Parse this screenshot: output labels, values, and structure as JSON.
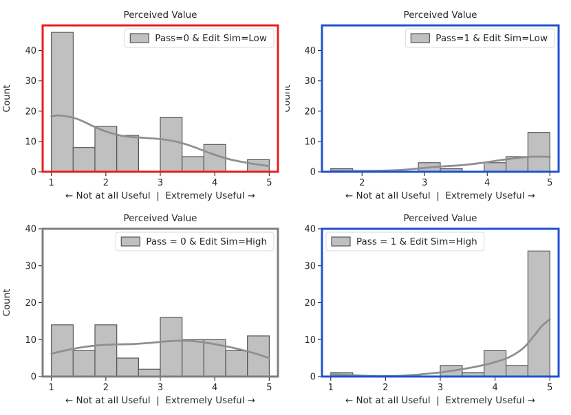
{
  "figure": {
    "background": "#ffffff",
    "text_color": "#262626",
    "bar_fill": "#c0c0c0",
    "bar_edge": "#555555",
    "kde_color": "#8f8f8f",
    "legend_border": "#d9d9d9",
    "legend_background": "#ffffff"
  },
  "chart_data": [
    {
      "id": "pass0-editsim-low",
      "type": "bar",
      "subtype": "histogram-with-kde",
      "title": "Perceived Value",
      "xlabel": "← Not at all Useful  |  Extremely Useful →",
      "ylabel": "Count",
      "legend": {
        "label": "Pass=0 & Edit Sim=Low",
        "position": "upper-right"
      },
      "border_color": "#eb1c1b",
      "bin_edges": [
        1.0,
        1.4,
        1.8,
        2.2,
        2.6,
        3.0,
        3.4,
        3.8,
        4.2,
        4.6,
        5.0
      ],
      "counts": [
        46,
        8,
        15,
        12,
        0,
        18,
        5,
        9,
        0,
        4
      ],
      "kde_x": [
        1.0,
        1.15,
        1.45,
        1.75,
        2.0,
        2.35,
        2.7,
        3.0,
        3.3,
        3.6,
        3.95,
        4.3,
        4.65,
        5.0
      ],
      "kde_y": [
        18.3,
        18.6,
        17.6,
        15.2,
        13.3,
        11.7,
        11.2,
        10.8,
        9.9,
        8.3,
        5.9,
        4.0,
        2.8,
        1.9
      ],
      "xlim": [
        0.84,
        5.16
      ],
      "ylim": [
        0,
        48.3
      ],
      "xticks": [
        1,
        2,
        3,
        4,
        5
      ],
      "yticks": [
        0,
        10,
        20,
        30,
        40
      ]
    },
    {
      "id": "pass1-editsim-low",
      "type": "bar",
      "subtype": "histogram-with-kde",
      "title": "Perceived Value",
      "xlabel": "← Not at all Useful  |  Extremely Useful →",
      "ylabel": "Count",
      "legend": {
        "label": "Pass=1 & Edit Sim=Low",
        "position": "upper-right"
      },
      "border_color": "#1f52cc",
      "bin_edges": [
        1.5,
        1.85,
        2.2,
        2.55,
        2.9,
        3.25,
        3.6,
        3.95,
        4.3,
        4.65,
        5.0
      ],
      "counts": [
        1,
        0,
        0,
        0,
        3,
        1,
        0,
        3,
        5,
        13
      ],
      "kde_x": [
        1.5,
        1.8,
        2.1,
        2.4,
        2.7,
        3.0,
        3.3,
        3.6,
        3.9,
        4.2,
        4.5,
        4.75,
        5.0
      ],
      "kde_y": [
        0.35,
        0.3,
        0.3,
        0.4,
        0.7,
        1.3,
        1.8,
        2.2,
        2.9,
        3.8,
        4.6,
        5.0,
        4.9
      ],
      "xlim": [
        1.36,
        5.14
      ],
      "ylim": [
        0,
        48.3
      ],
      "xticks": [
        2,
        3,
        4,
        5
      ],
      "yticks": [
        0,
        10,
        20,
        30,
        40
      ]
    },
    {
      "id": "pass0-editsim-high",
      "type": "bar",
      "subtype": "histogram-with-kde",
      "title": "Perceived Value",
      "xlabel": "← Not at all Useful  |  Extremely Useful →",
      "ylabel": "Count",
      "legend": {
        "label": "Pass = 0 & Edit Sim=High",
        "position": "upper-right"
      },
      "border_color": "#7f7f7f",
      "bin_edges": [
        1.0,
        1.4,
        1.8,
        2.2,
        2.6,
        3.0,
        3.4,
        3.8,
        4.2,
        4.6,
        5.0
      ],
      "counts": [
        14,
        7,
        14,
        5,
        2,
        16,
        10,
        10,
        7,
        11
      ],
      "kde_x": [
        1.0,
        1.3,
        1.6,
        1.9,
        2.2,
        2.5,
        2.8,
        3.1,
        3.35,
        3.6,
        3.9,
        4.2,
        4.5,
        4.75,
        5.0
      ],
      "kde_y": [
        6.2,
        7.2,
        8.0,
        8.5,
        8.7,
        8.8,
        9.1,
        9.5,
        9.7,
        9.6,
        9.0,
        8.2,
        7.2,
        6.2,
        5.0
      ],
      "xlim": [
        0.84,
        5.16
      ],
      "ylim": [
        0,
        40
      ],
      "xticks": [
        1,
        2,
        3,
        4,
        5
      ],
      "yticks": [
        0,
        10,
        20,
        30,
        40
      ]
    },
    {
      "id": "pass1-editsim-high",
      "type": "bar",
      "subtype": "histogram-with-kde",
      "title": "Perceived Value",
      "xlabel": "← Not at all Useful  |  Extremely Useful →",
      "ylabel": "",
      "legend": {
        "label": "Pass = 1 & Edit Sim=High",
        "position": "upper-left"
      },
      "border_color": "#1f52cc",
      "bin_edges": [
        1.0,
        1.4,
        1.8,
        2.2,
        2.6,
        3.0,
        3.4,
        3.8,
        4.2,
        4.6,
        5.0
      ],
      "counts": [
        1,
        0,
        0,
        0,
        0,
        3,
        1,
        7,
        3,
        34
      ],
      "kde_x": [
        1.0,
        1.3,
        1.6,
        1.9,
        2.2,
        2.5,
        2.8,
        3.1,
        3.4,
        3.7,
        4.0,
        4.25,
        4.5,
        4.7,
        4.85,
        5.0
      ],
      "kde_y": [
        0.6,
        0.45,
        0.2,
        0.1,
        0.15,
        0.4,
        0.8,
        1.3,
        2.0,
        2.8,
        3.9,
        5.2,
        7.5,
        10.8,
        13.6,
        15.5
      ],
      "xlim": [
        0.84,
        5.16
      ],
      "ylim": [
        0,
        40
      ],
      "xticks": [
        1,
        2,
        3,
        4,
        5
      ],
      "yticks": [
        0,
        10,
        20,
        30,
        40
      ]
    }
  ]
}
